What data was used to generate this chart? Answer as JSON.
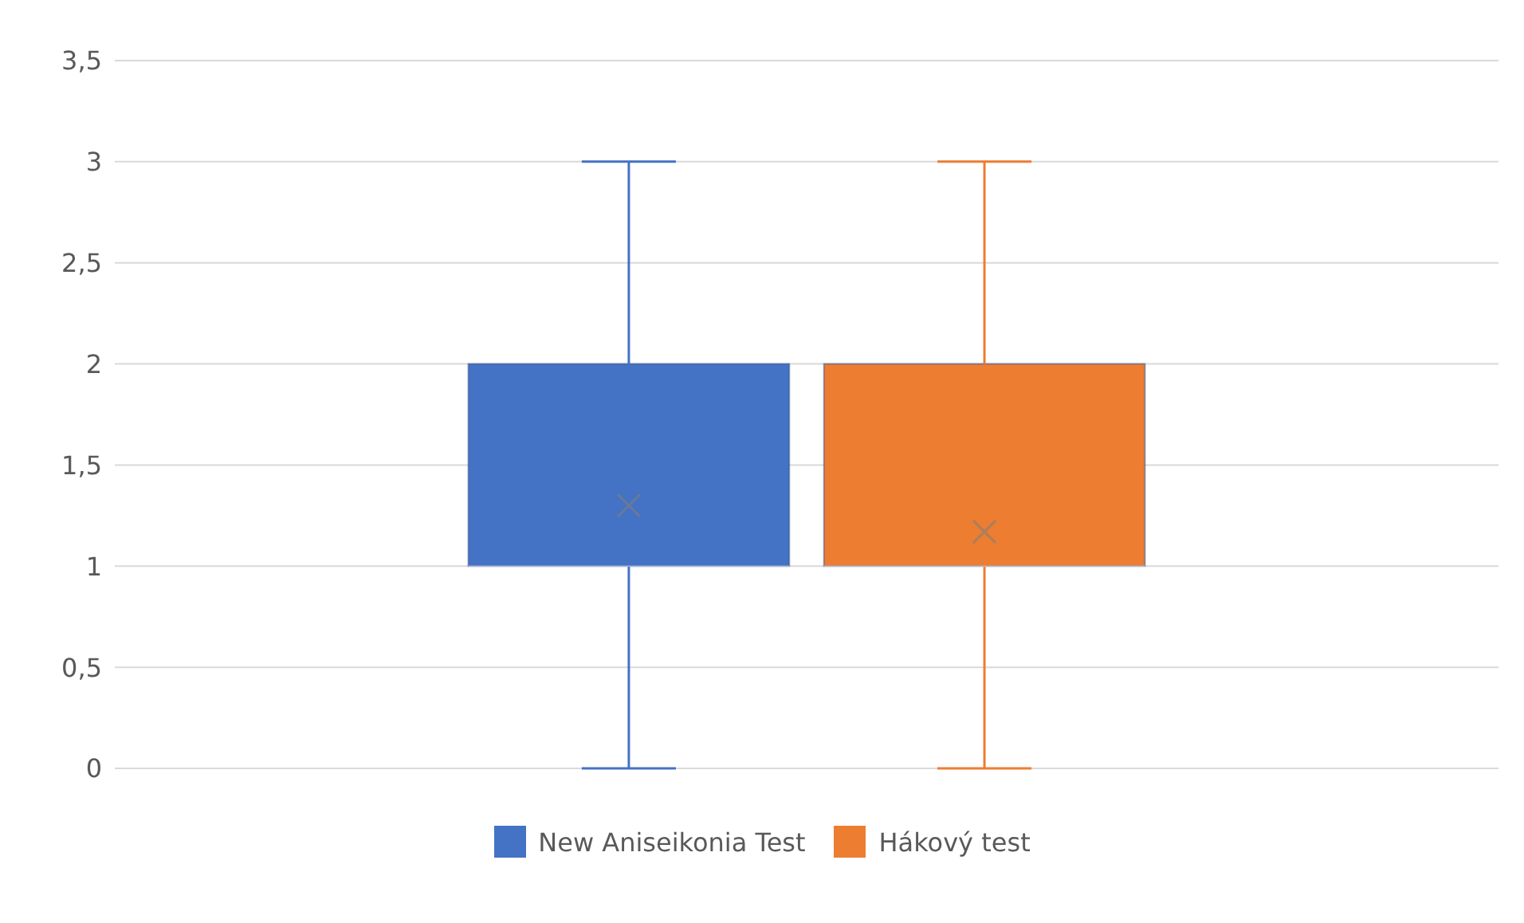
{
  "chart_data": {
    "type": "box",
    "categories": [
      null
    ],
    "series": [
      {
        "name": "New Aniseikonia Test",
        "color": "#4472c4",
        "boxes": [
          {
            "low": 0,
            "q1": 1,
            "median": 1,
            "q3": 2,
            "high": 3,
            "mean": 1.3
          }
        ]
      },
      {
        "name": "Hákový test",
        "color": "#ed7d31",
        "boxes": [
          {
            "low": 0,
            "q1": 1,
            "median": 1,
            "q3": 2,
            "high": 3,
            "mean": 1.17
          }
        ]
      }
    ],
    "ylim": [
      0,
      3.5
    ],
    "yticks": [
      0,
      {
        "value": 0.5,
        "label": "0,5"
      },
      1,
      {
        "value": 1.5,
        "label": "1,5"
      },
      2,
      {
        "value": 2.5,
        "label": "2,5"
      },
      3,
      {
        "value": 3.5,
        "label": "3,5"
      }
    ],
    "grid": "y",
    "legend": "bottom",
    "marker": "cross"
  }
}
